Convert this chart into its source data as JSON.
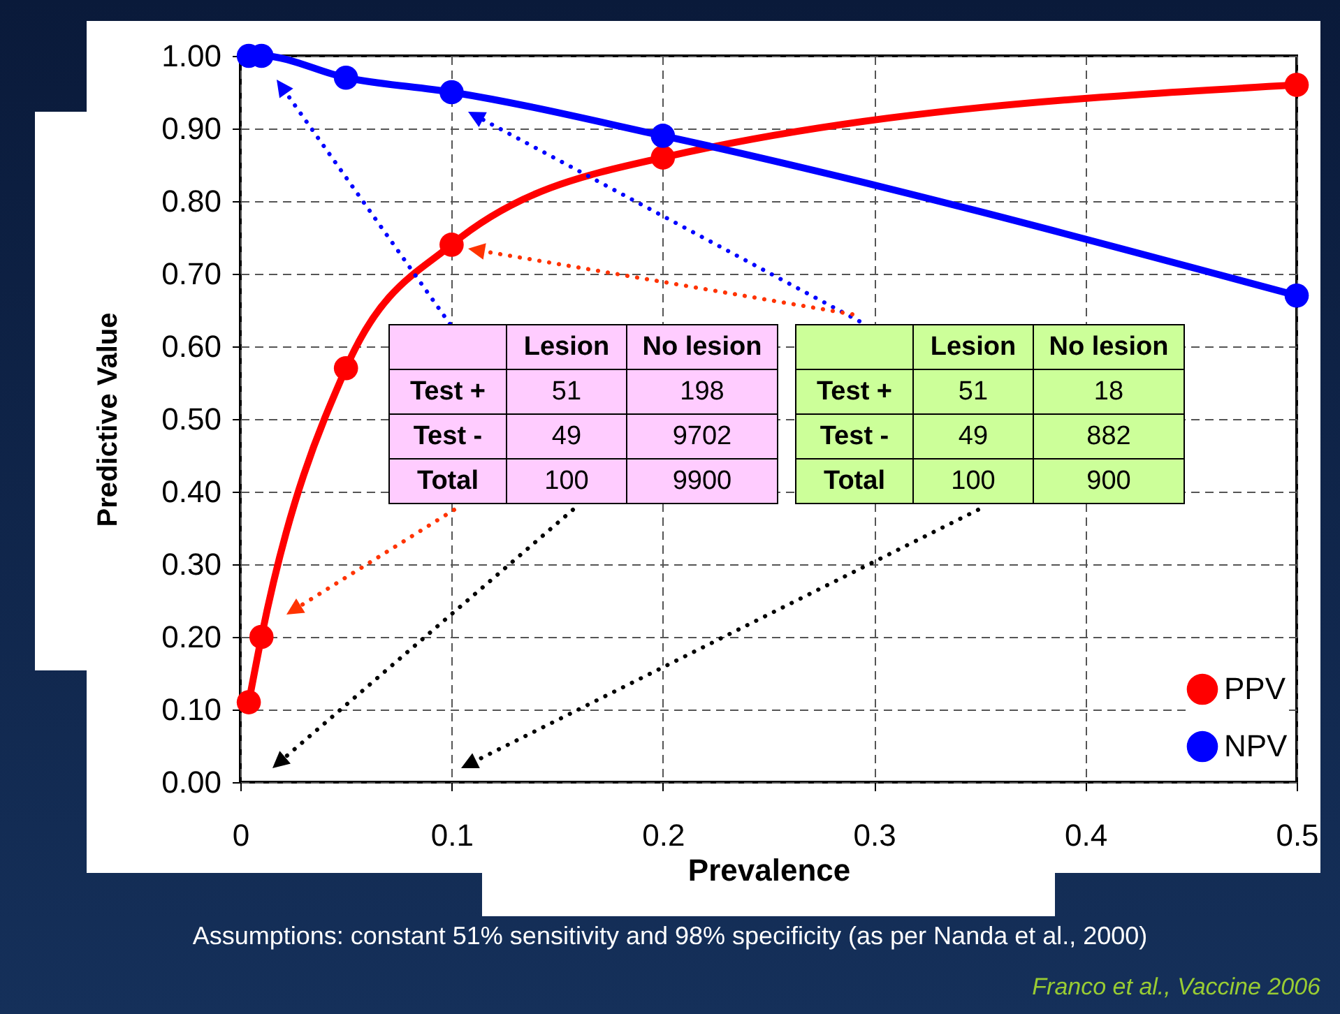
{
  "chart_data": {
    "type": "line",
    "xlabel": "Prevalence",
    "ylabel": "Predictive Value",
    "annotations": [
      "Assumptions: constant 51% sensitivity and 98% specificity (as per Nanda et al., 2000)",
      "Franco et al., Vaccine 2006",
      "Lesion",
      "No lesion",
      "Test +",
      "51",
      "198",
      "Test -",
      "49",
      "9702",
      "Total",
      "100",
      "9900",
      "Lesion",
      "No lesion",
      "Test +",
      "51",
      "18",
      "Test -",
      "49",
      "882",
      "Total",
      "100",
      "900"
    ],
    "series": [
      {
        "name": "PPV",
        "color": "#ff0000",
        "x": [
          0.004,
          0.01,
          0.05,
          0.1,
          0.2,
          0.5
        ],
        "values": [
          0.11,
          0.2,
          0.57,
          0.74,
          0.86,
          0.96
        ]
      },
      {
        "name": "NPV",
        "color": "#0000ff",
        "x": [
          0.004,
          0.01,
          0.05,
          0.1,
          0.2,
          0.5
        ],
        "values": [
          1.0,
          1.0,
          0.97,
          0.95,
          0.89,
          0.67
        ]
      }
    ],
    "xlim": [
      0,
      0.5
    ],
    "xticks": [
      0,
      0.1,
      0.2,
      0.3,
      0.4,
      0.5
    ],
    "ylim": [
      0,
      1
    ],
    "yticks": [
      {
        "value": 0,
        "label": "0.00"
      },
      {
        "value": 0.1,
        "label": "0.10"
      },
      {
        "value": 0.2,
        "label": "0.20"
      },
      {
        "value": 0.3,
        "label": "0.30"
      },
      {
        "value": 0.4,
        "label": "0.40"
      },
      {
        "value": 0.5,
        "label": "0.50"
      },
      {
        "value": 0.6,
        "label": "0.60"
      },
      {
        "value": 0.7,
        "label": "0.70"
      },
      {
        "value": 0.8,
        "label": "0.80"
      },
      {
        "value": 0.9,
        "label": "0.90"
      },
      {
        "value": 1,
        "label": "1.00"
      }
    ],
    "grid": true,
    "legend": "bottom right",
    "marker": "circle"
  }
}
